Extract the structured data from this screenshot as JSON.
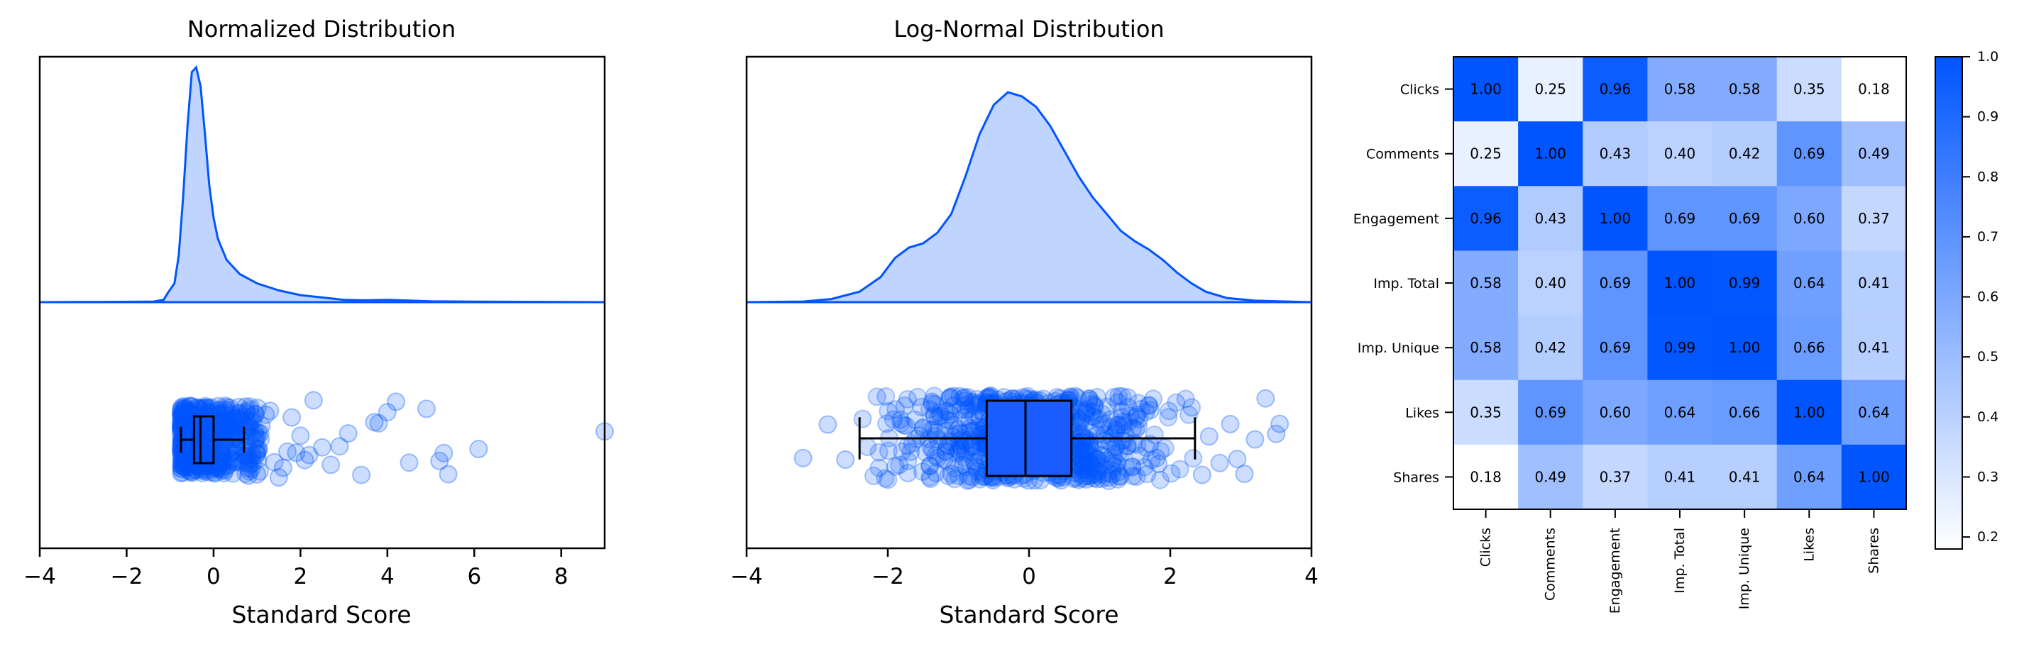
{
  "colors": {
    "accent": "#0055ff",
    "kde_fill": "#bfd4ff",
    "box_fill": "#1a5cff",
    "frame": "#000000"
  },
  "chart_data": [
    {
      "type": "raincloud",
      "title": "Normalized Distribution",
      "xlabel": "Standard Score",
      "xlim": [
        -4,
        9
      ],
      "xticks": [
        -4,
        -2,
        0,
        2,
        4,
        6,
        8
      ],
      "xtick_labels": [
        "−4",
        "−2",
        "0",
        "2",
        "4",
        "6",
        "8"
      ],
      "kde_points": [
        [
          -4,
          0
        ],
        [
          -1.4,
          0.002
        ],
        [
          -1.15,
          0.01
        ],
        [
          -1.05,
          0.04
        ],
        [
          -0.9,
          0.08
        ],
        [
          -0.8,
          0.2
        ],
        [
          -0.7,
          0.45
        ],
        [
          -0.6,
          0.75
        ],
        [
          -0.5,
          0.98
        ],
        [
          -0.4,
          1.0
        ],
        [
          -0.3,
          0.92
        ],
        [
          -0.2,
          0.72
        ],
        [
          -0.1,
          0.5
        ],
        [
          0.0,
          0.36
        ],
        [
          0.1,
          0.27
        ],
        [
          0.3,
          0.18
        ],
        [
          0.6,
          0.12
        ],
        [
          1.0,
          0.08
        ],
        [
          1.5,
          0.05
        ],
        [
          2.0,
          0.03
        ],
        [
          2.5,
          0.02
        ],
        [
          3.0,
          0.01
        ],
        [
          3.5,
          0.008
        ],
        [
          4.0,
          0.01
        ],
        [
          5.0,
          0.004
        ],
        [
          6.0,
          0.002
        ],
        [
          9.0,
          0
        ]
      ],
      "box": {
        "whisker_low": -0.75,
        "q1": -0.45,
        "median": -0.3,
        "q3": 0.0,
        "whisker_high": 0.7
      },
      "outliers": [
        0.8,
        0.9,
        1.0,
        1.1,
        1.2,
        1.3,
        1.4,
        1.5,
        1.6,
        1.7,
        1.8,
        1.9,
        2.0,
        2.1,
        2.2,
        2.3,
        2.5,
        2.7,
        2.9,
        3.1,
        3.4,
        3.7,
        3.8,
        4.0,
        4.2,
        4.5,
        4.9,
        5.2,
        5.3,
        5.4,
        6.1,
        9.0
      ]
    },
    {
      "type": "raincloud",
      "title": "Log-Normal Distribution",
      "xlabel": "Standard Score",
      "xlim": [
        -4,
        4
      ],
      "xticks": [
        -4,
        -2,
        0,
        2,
        4
      ],
      "xtick_labels": [
        "−4",
        "−2",
        "0",
        "2",
        "4"
      ],
      "kde_points": [
        [
          -4,
          0
        ],
        [
          -3.2,
          0.003
        ],
        [
          -2.8,
          0.015
        ],
        [
          -2.4,
          0.05
        ],
        [
          -2.1,
          0.12
        ],
        [
          -1.9,
          0.21
        ],
        [
          -1.7,
          0.26
        ],
        [
          -1.5,
          0.28
        ],
        [
          -1.3,
          0.33
        ],
        [
          -1.1,
          0.42
        ],
        [
          -0.9,
          0.6
        ],
        [
          -0.7,
          0.8
        ],
        [
          -0.5,
          0.94
        ],
        [
          -0.3,
          1.0
        ],
        [
          -0.1,
          0.98
        ],
        [
          0.1,
          0.93
        ],
        [
          0.3,
          0.84
        ],
        [
          0.5,
          0.72
        ],
        [
          0.7,
          0.6
        ],
        [
          0.9,
          0.5
        ],
        [
          1.1,
          0.42
        ],
        [
          1.3,
          0.34
        ],
        [
          1.5,
          0.29
        ],
        [
          1.7,
          0.25
        ],
        [
          1.9,
          0.2
        ],
        [
          2.1,
          0.14
        ],
        [
          2.3,
          0.09
        ],
        [
          2.5,
          0.05
        ],
        [
          2.8,
          0.02
        ],
        [
          3.2,
          0.007
        ],
        [
          4.0,
          0
        ]
      ],
      "box": {
        "whisker_low": -2.4,
        "q1": -0.6,
        "median": -0.05,
        "q3": 0.6,
        "whisker_high": 2.35
      },
      "outliers": [
        -3.2,
        -2.85,
        -2.6,
        2.45,
        2.55,
        2.7,
        2.85,
        2.95,
        3.05,
        3.2,
        3.35,
        3.5,
        3.55
      ]
    },
    {
      "type": "heatmap",
      "labels": [
        "Clicks",
        "Comments",
        "Engagement",
        "Imp. Total",
        "Imp. Unique",
        "Likes",
        "Shares"
      ],
      "matrix": [
        [
          1.0,
          0.25,
          0.96,
          0.58,
          0.58,
          0.35,
          0.18
        ],
        [
          0.25,
          1.0,
          0.43,
          0.4,
          0.42,
          0.69,
          0.49
        ],
        [
          0.96,
          0.43,
          1.0,
          0.69,
          0.69,
          0.6,
          0.37
        ],
        [
          0.58,
          0.4,
          0.69,
          1.0,
          0.99,
          0.64,
          0.41
        ],
        [
          0.58,
          0.42,
          0.69,
          0.99,
          1.0,
          0.66,
          0.41
        ],
        [
          0.35,
          0.69,
          0.6,
          0.64,
          0.66,
          1.0,
          0.64
        ],
        [
          0.18,
          0.49,
          0.37,
          0.41,
          0.41,
          0.64,
          1.0
        ]
      ],
      "colorbar": {
        "vmin": 0.18,
        "vmax": 1.0,
        "ticks": [
          0.2,
          0.3,
          0.4,
          0.5,
          0.6,
          0.7,
          0.8,
          0.9,
          1.0
        ],
        "tick_labels": [
          "0.2",
          "0.3",
          "0.4",
          "0.5",
          "0.6",
          "0.7",
          "0.8",
          "0.9",
          "1.0"
        ],
        "color_low": "#ffffff",
        "color_high": "#0055ff"
      }
    }
  ]
}
